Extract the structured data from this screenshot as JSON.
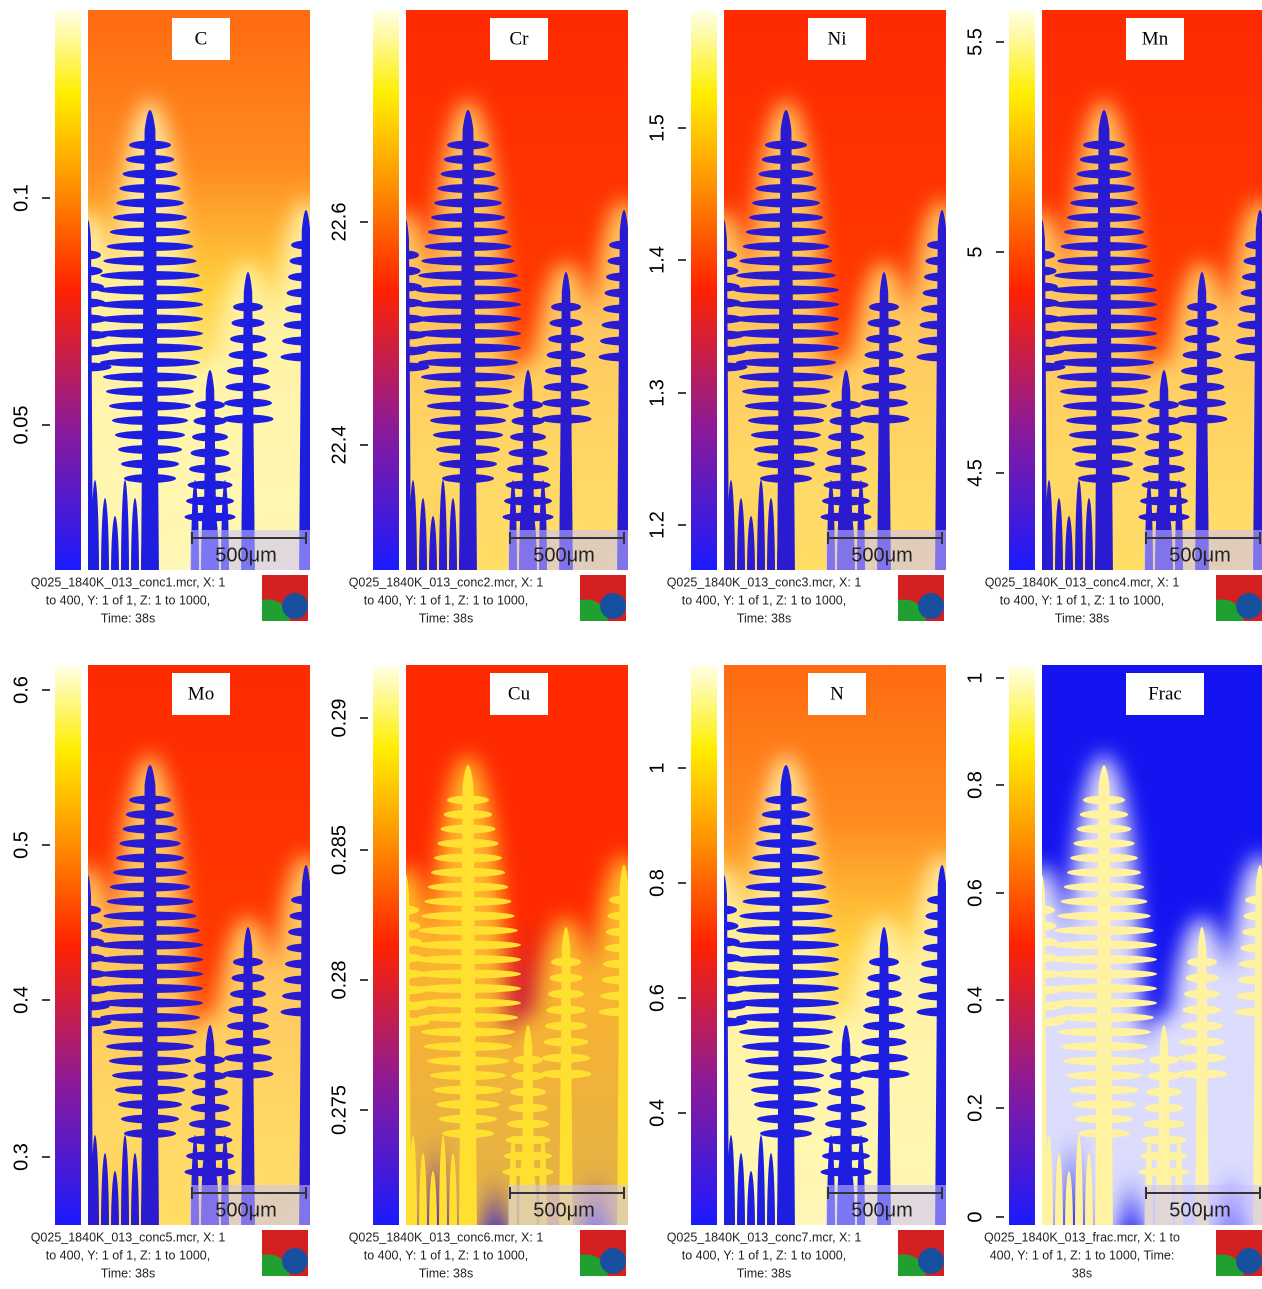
{
  "panels": [
    {
      "label": "C",
      "ticks": [
        "0.1",
        "0.05"
      ],
      "scale_bar": "500μm",
      "caption": [
        "Q025_1840K_013_conc1.mcr, X: 1",
        "to 400, Y: 1 of 1, Z: 1 to 1000,",
        "Time: 38s"
      ]
    },
    {
      "label": "Cr",
      "ticks": [
        "22.6",
        "22.4"
      ],
      "scale_bar": "500μm",
      "caption": [
        "Q025_1840K_013_conc2.mcr, X: 1",
        "to 400, Y: 1 of 1, Z: 1 to 1000,",
        "Time: 38s"
      ]
    },
    {
      "label": "Ni",
      "ticks": [
        "1.5",
        "1.4",
        "1.3",
        "1.2"
      ],
      "scale_bar": "500μm",
      "caption": [
        "Q025_1840K_013_conc3.mcr, X: 1",
        "to 400, Y: 1 of 1, Z: 1 to 1000,",
        "Time: 38s"
      ]
    },
    {
      "label": "Mn",
      "ticks": [
        "5.5",
        "5",
        "4.5"
      ],
      "scale_bar": "500μm",
      "caption": [
        "Q025_1840K_013_conc4.mcr, X: 1",
        "to 400, Y: 1 of 1, Z: 1 to 1000,",
        "Time: 38s"
      ]
    },
    {
      "label": "Mo",
      "ticks": [
        "0.6",
        "0.5",
        "0.4",
        "0.3"
      ],
      "scale_bar": "500μm",
      "caption": [
        "Q025_1840K_013_conc5.mcr, X: 1",
        "to 400, Y: 1 of 1, Z: 1 to 1000,",
        "Time: 38s"
      ]
    },
    {
      "label": "Cu",
      "ticks": [
        "0.29",
        "0.285",
        "0.28",
        "0.275"
      ],
      "scale_bar": "500μm",
      "caption": [
        "Q025_1840K_013_conc6.mcr, X: 1",
        "to 400, Y: 1 of 1, Z: 1 to 1000,",
        "Time: 38s"
      ]
    },
    {
      "label": "N",
      "ticks": [
        "1",
        "0.8",
        "0.6",
        "0.4"
      ],
      "scale_bar": "500μm",
      "caption": [
        "Q025_1840K_013_conc7.mcr, X: 1",
        "to 400, Y: 1 of 1, Z: 1 to 1000,",
        "Time: 38s"
      ]
    },
    {
      "label": "Frac",
      "ticks": [
        "1",
        "0.8",
        "0.6",
        "0.4",
        "0.2",
        "0"
      ],
      "scale_bar": "500μm",
      "caption": [
        "Q025_1840K_013_frac.mcr, X: 1 to",
        "400, Y: 1 of 1, Z: 1 to 1000, Time:",
        "38s"
      ]
    }
  ]
}
